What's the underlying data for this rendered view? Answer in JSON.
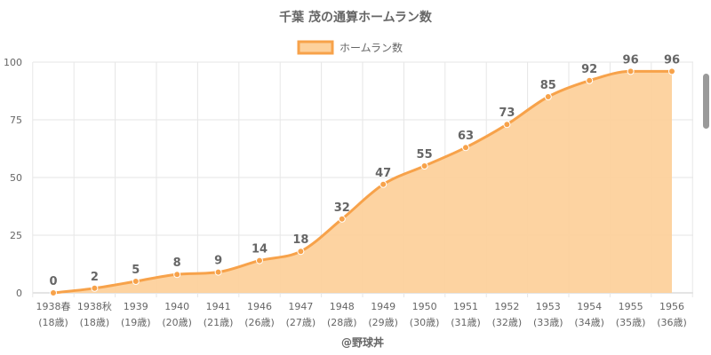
{
  "chart_data": {
    "type": "area",
    "title": "千葉 茂の通算ホームラン数",
    "categories": [
      "1938春",
      "1938秋",
      "1939",
      "1940",
      "1941",
      "1946",
      "1947",
      "1948",
      "1949",
      "1950",
      "1951",
      "1952",
      "1953",
      "1954",
      "1955",
      "1956"
    ],
    "ages": [
      "(18歳)",
      "(18歳)",
      "(19歳)",
      "(20歳)",
      "(21歳)",
      "(26歳)",
      "(27歳)",
      "(28歳)",
      "(29歳)",
      "(30歳)",
      "(31歳)",
      "(32歳)",
      "(33歳)",
      "(34歳)",
      "(35歳)",
      "(36歳)"
    ],
    "series": [
      {
        "name": "ホームラン数",
        "values": [
          0,
          2,
          5,
          8,
          9,
          14,
          18,
          32,
          47,
          55,
          63,
          73,
          85,
          92,
          96,
          96
        ]
      }
    ],
    "ylim": [
      0,
      100
    ],
    "yticks": [
      0,
      25,
      50,
      75,
      100
    ],
    "grid": true,
    "legend": "top-center",
    "colors": {
      "line": "#f7a24a",
      "fill": "#fdd19c",
      "grid": "#e6e6e6",
      "text": "#666666"
    }
  },
  "credit": "@野球丼"
}
